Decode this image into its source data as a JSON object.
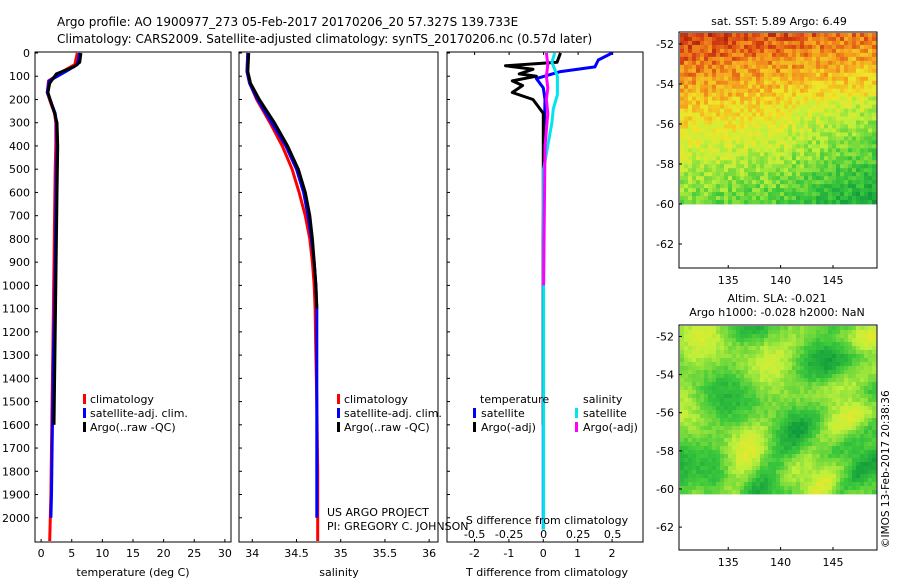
{
  "header": {
    "line1": "Argo profile: AO 1900977_273 05-Feb-2017 20170206_20 57.327S 139.733E",
    "line2": "Climatology: CARS2009. Satellite-adjusted climatology: synTS_20170206.nc (0.57d later)"
  },
  "colors": {
    "climatology": "#ff0000",
    "satellite_clim": "#0000ff",
    "argo": "#000000",
    "sat_salinity": "#00e5ee",
    "argo_adj_salinity": "#ff00ff"
  },
  "depth_ticks": [
    "0",
    "100",
    "200",
    "300",
    "400",
    "500",
    "600",
    "700",
    "800",
    "900",
    "1000",
    "1100",
    "1200",
    "1300",
    "1400",
    "1500",
    "1600",
    "1700",
    "1800",
    "1900",
    "2000"
  ],
  "temperature_panel": {
    "xlabel": "temperature (deg C)",
    "xticks": [
      "0",
      "5",
      "10",
      "15",
      "20",
      "25",
      "30"
    ],
    "legend": [
      "climatology",
      "satellite-adj. clim.",
      "Argo(..raw -QC)"
    ]
  },
  "salinity_panel": {
    "xlabel": "salinity",
    "xticks": [
      "34",
      "34.5",
      "35",
      "35.5",
      "36"
    ],
    "legend": [
      "climatology",
      "satellite-adj. clim.",
      "Argo(..raw -QC)"
    ],
    "credit1": "US ARGO PROJECT",
    "credit2": "PI: GREGORY C. JOHNSON"
  },
  "difference_panel": {
    "xlabel": "T difference from climatology",
    "top_label": "S difference from climatology",
    "t_ticks": [
      "-2",
      "-1",
      "0",
      "1",
      "2"
    ],
    "s_ticks": [
      "-0.5",
      "-0.25",
      "0",
      "0.25",
      "0.5"
    ],
    "temperature_title": "temperature",
    "salinity_title": "salinity",
    "satellite": "satellite",
    "argo_adj": "Argo(-adj)"
  },
  "sst_map": {
    "title": "sat. SST: 5.89 Argo: 6.49",
    "yticks": [
      "-52",
      "-54",
      "-56",
      "-58",
      "-60",
      "-62"
    ],
    "xticks": [
      "135",
      "140",
      "145"
    ]
  },
  "sla_map": {
    "title1": "Altim. SLA: -0.021",
    "title2": "Argo h1000: -0.028 h2000: NaN",
    "yticks": [
      "-52",
      "-54",
      "-56",
      "-58",
      "-60",
      "-62"
    ],
    "xticks": [
      "135",
      "140",
      "145"
    ]
  },
  "imos_stamp": "©IMOS 13-Feb-2017 20:38:36",
  "chart_data": [
    {
      "type": "line",
      "xlabel": "temperature (deg C)",
      "ylim": [
        2100,
        0
      ],
      "xlim": [
        -1,
        31
      ],
      "series": [
        {
          "name": "climatology",
          "x": [
            5.9,
            5.5,
            3.5,
            1.2,
            1.0,
            1.5,
            2.2,
            2.4,
            2.4,
            2.3,
            2.2,
            2.1,
            2.0,
            1.9,
            1.8,
            1.7,
            1.6,
            1.5,
            1.4
          ],
          "y": [
            0,
            50,
            80,
            120,
            170,
            210,
            260,
            300,
            400,
            500,
            700,
            900,
            1100,
            1300,
            1500,
            1700,
            1900,
            2000,
            2100
          ]
        },
        {
          "name": "satellite-adj. clim.",
          "x": [
            6.3,
            5.9,
            4.0,
            1.3,
            1.0,
            1.6,
            2.3,
            2.5,
            2.6,
            2.5,
            2.4,
            2.3,
            2.2,
            2.0,
            1.9,
            1.8,
            1.7,
            1.6
          ],
          "y": [
            0,
            50,
            80,
            120,
            170,
            210,
            260,
            300,
            400,
            500,
            700,
            900,
            1100,
            1300,
            1500,
            1700,
            1900,
            2000
          ]
        },
        {
          "name": "Argo(..raw -QC)",
          "x": [
            6.5,
            6.3,
            5.3,
            2.5,
            1.4,
            1.1,
            1.6,
            2.2,
            2.6,
            2.7,
            2.6,
            2.5,
            2.4,
            2.3,
            2.2,
            2.1
          ],
          "y": [
            0,
            40,
            60,
            90,
            130,
            170,
            210,
            260,
            300,
            400,
            600,
            800,
            1000,
            1200,
            1400,
            1600
          ]
        }
      ]
    },
    {
      "type": "line",
      "xlabel": "salinity",
      "ylim": [
        2100,
        0
      ],
      "xlim": [
        33.85,
        36.1
      ],
      "series": [
        {
          "name": "climatology",
          "x": [
            33.95,
            33.94,
            33.97,
            34.05,
            34.2,
            34.34,
            34.45,
            34.53,
            34.6,
            34.65,
            34.68,
            34.7,
            34.71,
            34.72,
            34.73,
            34.74,
            34.74
          ],
          "y": [
            0,
            80,
            130,
            200,
            300,
            400,
            500,
            600,
            700,
            800,
            900,
            1000,
            1100,
            1300,
            1500,
            1800,
            2100
          ]
        },
        {
          "name": "satellite-adj. clim.",
          "x": [
            33.95,
            33.94,
            33.97,
            34.06,
            34.22,
            34.38,
            34.5,
            34.58,
            34.63,
            34.67,
            34.7,
            34.72,
            34.73,
            34.73,
            34.73
          ],
          "y": [
            0,
            80,
            130,
            200,
            300,
            400,
            500,
            600,
            700,
            800,
            900,
            1000,
            1100,
            1300,
            2000
          ]
        },
        {
          "name": "Argo(..raw -QC)",
          "x": [
            33.96,
            33.95,
            33.98,
            34.08,
            34.25,
            34.4,
            34.52,
            34.6,
            34.65,
            34.68,
            34.7,
            34.72,
            34.73
          ],
          "y": [
            0,
            80,
            130,
            200,
            300,
            400,
            500,
            600,
            700,
            800,
            900,
            1000,
            1100
          ]
        }
      ]
    },
    {
      "type": "line",
      "xlabel": "T difference from climatology",
      "ylim": [
        2100,
        0
      ],
      "xlim": [
        -2.8,
        2.9
      ],
      "series": [
        {
          "name": "satellite",
          "x": [
            2.0,
            1.6,
            1.5,
            0.5,
            -0.2,
            -0.1,
            0.0,
            0.05,
            0.02,
            0.0,
            0.0,
            0.0
          ],
          "y": [
            0,
            30,
            60,
            80,
            110,
            130,
            150,
            200,
            400,
            800,
            1500,
            2050
          ]
        },
        {
          "name": "Argo(-adj)",
          "x": [
            0.5,
            0.4,
            -1.1,
            -0.3,
            -0.7,
            -0.2,
            -0.9,
            -0.6,
            -0.9,
            -0.3,
            0.0,
            0.0,
            0.0,
            0.0
          ],
          "y": [
            0,
            40,
            55,
            70,
            90,
            100,
            120,
            140,
            170,
            200,
            260,
            400,
            800,
            1600
          ]
        }
      ]
    },
    {
      "type": "line",
      "xlabel": "S difference from climatology",
      "ylim": [
        2100,
        0
      ],
      "xlim": [
        -0.7,
        0.72
      ],
      "series": [
        {
          "name": "satellite",
          "x": [
            0.08,
            0.06,
            0.1,
            0.1,
            0.07,
            0.06,
            0.0,
            0.0,
            0.0
          ],
          "y": [
            0,
            40,
            100,
            180,
            240,
            300,
            500,
            1000,
            2050
          ]
        },
        {
          "name": "Argo(-adj)",
          "x": [
            0.02,
            0.03,
            0.02,
            0.03,
            0.02,
            0.03,
            0.01,
            0.0
          ],
          "y": [
            0,
            50,
            100,
            150,
            200,
            260,
            400,
            1000
          ]
        }
      ]
    }
  ]
}
